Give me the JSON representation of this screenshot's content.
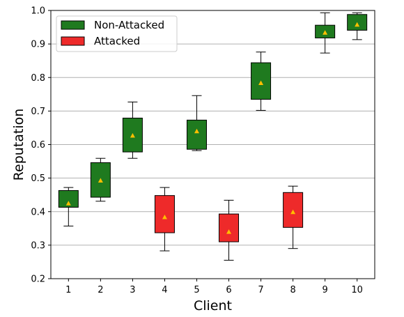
{
  "chart_data": {
    "type": "box",
    "title": "",
    "xlabel": "Client",
    "ylabel": "Reputation",
    "ylim": [
      0.2,
      1.0
    ],
    "yticks": [
      "0.2",
      "0.3",
      "0.4",
      "0.5",
      "0.6",
      "0.7",
      "0.8",
      "0.9",
      "1.0"
    ],
    "categories": [
      "1",
      "2",
      "3",
      "4",
      "5",
      "6",
      "7",
      "8",
      "9",
      "10"
    ],
    "grid": "horizontal",
    "legend_position": "top-left",
    "colors": {
      "non_attacked": "#1f7a1f",
      "attacked": "#ee2a2a",
      "mean_marker": "#ffbf00"
    },
    "legend": [
      {
        "label": "Non-Attacked",
        "group": "non_attacked"
      },
      {
        "label": "Attacked",
        "group": "attacked"
      }
    ],
    "boxes": [
      {
        "client": "1",
        "group": "non_attacked",
        "whisker_low": 0.357,
        "q1": 0.413,
        "q3": 0.463,
        "whisker_high": 0.472,
        "mean": 0.425
      },
      {
        "client": "2",
        "group": "non_attacked",
        "whisker_low": 0.431,
        "q1": 0.443,
        "q3": 0.546,
        "whisker_high": 0.559,
        "mean": 0.493
      },
      {
        "client": "3",
        "group": "non_attacked",
        "whisker_low": 0.559,
        "q1": 0.578,
        "q3": 0.679,
        "whisker_high": 0.727,
        "mean": 0.627
      },
      {
        "client": "4",
        "group": "attacked",
        "whisker_low": 0.283,
        "q1": 0.337,
        "q3": 0.448,
        "whisker_high": 0.472,
        "mean": 0.384
      },
      {
        "client": "5",
        "group": "non_attacked",
        "whisker_low": 0.582,
        "q1": 0.586,
        "q3": 0.673,
        "whisker_high": 0.746,
        "mean": 0.64
      },
      {
        "client": "6",
        "group": "attacked",
        "whisker_low": 0.255,
        "q1": 0.31,
        "q3": 0.393,
        "whisker_high": 0.434,
        "mean": 0.34
      },
      {
        "client": "7",
        "group": "non_attacked",
        "whisker_low": 0.702,
        "q1": 0.735,
        "q3": 0.844,
        "whisker_high": 0.876,
        "mean": 0.784
      },
      {
        "client": "8",
        "group": "attacked",
        "whisker_low": 0.29,
        "q1": 0.353,
        "q3": 0.457,
        "whisker_high": 0.476,
        "mean": 0.399
      },
      {
        "client": "9",
        "group": "non_attacked",
        "whisker_low": 0.873,
        "q1": 0.918,
        "q3": 0.956,
        "whisker_high": 0.993,
        "mean": 0.934
      },
      {
        "client": "10",
        "group": "non_attacked",
        "whisker_low": 0.913,
        "q1": 0.941,
        "q3": 0.988,
        "whisker_high": 0.993,
        "mean": 0.958
      }
    ]
  }
}
